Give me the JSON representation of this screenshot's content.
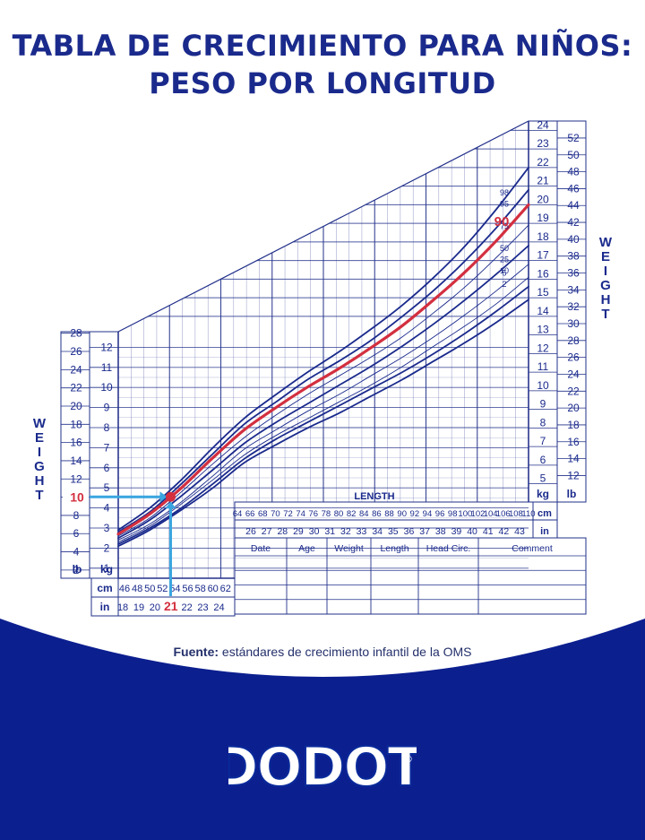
{
  "title": {
    "line1": "TABLA DE CRECIMIENTO PARA NIÑOS:",
    "line2": "PESO POR LONGITUD"
  },
  "colors": {
    "navy": "#1a2a8c",
    "grid": "#22308a",
    "highlight_red": "#d32f3f",
    "arrow_blue": "#3aa6e0",
    "footer_blue": "#0c1f8f"
  },
  "chart_data": {
    "type": "line",
    "title": "",
    "x_axis": {
      "label": "LENGTH",
      "cm_unit": "cm",
      "in_unit": "in",
      "cm_ticks_left": [
        "46",
        "48",
        "50",
        "52",
        "54",
        "56",
        "58",
        "60",
        "62"
      ],
      "in_ticks_left": [
        "18",
        "19",
        "20",
        "21",
        "22",
        "23",
        "24"
      ],
      "cm_ticks_right": [
        "64",
        "66",
        "68",
        "70",
        "72",
        "74",
        "76",
        "78",
        "80",
        "82",
        "84",
        "86",
        "88",
        "90",
        "92",
        "94",
        "96",
        "98",
        "100",
        "102",
        "104",
        "106",
        "108",
        "110"
      ],
      "in_ticks_right": [
        "26",
        "27",
        "28",
        "29",
        "30",
        "31",
        "32",
        "33",
        "34",
        "35",
        "36",
        "37",
        "38",
        "39",
        "40",
        "41",
        "42",
        "43"
      ],
      "range_cm": [
        45,
        110
      ]
    },
    "y_axis": {
      "label_letters": [
        "W",
        "E",
        "I",
        "G",
        "H",
        "T"
      ],
      "kg_unit": "kg",
      "lb_unit": "lb",
      "left_kg_ticks": [
        "1",
        "2",
        "3",
        "4",
        "5",
        "6",
        "7",
        "8",
        "9",
        "10",
        "11",
        "12"
      ],
      "left_lb_ticks": [
        "2",
        "4",
        "6",
        "8",
        "10",
        "12",
        "14",
        "16",
        "18",
        "20",
        "22",
        "24",
        "26",
        "28"
      ],
      "right_kg_ticks": [
        "5",
        "6",
        "7",
        "8",
        "9",
        "10",
        "11",
        "12",
        "13",
        "14",
        "15",
        "16",
        "17",
        "18",
        "19",
        "20",
        "21",
        "22",
        "23",
        "24"
      ],
      "right_lb_ticks": [
        "12",
        "14",
        "16",
        "18",
        "20",
        "22",
        "24",
        "26",
        "28",
        "30",
        "32",
        "34",
        "36",
        "38",
        "40",
        "42",
        "44",
        "46",
        "48",
        "50",
        "52"
      ],
      "range_kg_left": [
        0.5,
        13
      ],
      "range_kg_right": [
        4.5,
        24.5
      ]
    },
    "percentile_labels": [
      "98",
      "95",
      "90",
      "75",
      "50",
      "25",
      "10",
      "5",
      "2"
    ],
    "x": [
      45,
      50,
      55,
      60,
      65,
      70,
      75,
      80,
      85,
      90,
      95,
      100,
      105,
      110
    ],
    "series": [
      {
        "name": "98",
        "values": [
          2.9,
          4.0,
          5.4,
          7.0,
          8.5,
          9.8,
          11.0,
          12.1,
          13.3,
          14.6,
          16.1,
          17.8,
          19.8,
          22.0
        ]
      },
      {
        "name": "95",
        "values": [
          2.8,
          3.8,
          5.2,
          6.7,
          8.2,
          9.4,
          10.6,
          11.6,
          12.7,
          14.0,
          15.4,
          17.0,
          18.8,
          20.8
        ]
      },
      {
        "name": "90",
        "values": [
          2.7,
          3.7,
          5.0,
          6.5,
          7.9,
          9.1,
          10.2,
          11.2,
          12.3,
          13.5,
          14.9,
          16.4,
          18.1,
          20.0
        ]
      },
      {
        "name": "75",
        "values": [
          2.6,
          3.5,
          4.8,
          6.2,
          7.5,
          8.7,
          9.8,
          10.8,
          11.8,
          12.9,
          14.2,
          15.6,
          17.2,
          18.9
        ]
      },
      {
        "name": "50",
        "values": [
          2.5,
          3.4,
          4.6,
          5.9,
          7.2,
          8.3,
          9.3,
          10.3,
          11.3,
          12.4,
          13.6,
          14.9,
          16.3,
          17.8
        ]
      },
      {
        "name": "25",
        "values": [
          2.4,
          3.2,
          4.3,
          5.6,
          6.9,
          7.9,
          8.9,
          9.8,
          10.8,
          11.8,
          12.9,
          14.1,
          15.4,
          16.8
        ]
      },
      {
        "name": "10",
        "values": [
          2.3,
          3.1,
          4.2,
          5.4,
          6.6,
          7.6,
          8.5,
          9.4,
          10.3,
          11.3,
          12.4,
          13.5,
          14.7,
          16.1
        ]
      },
      {
        "name": "5",
        "values": [
          2.2,
          3.0,
          4.0,
          5.2,
          6.4,
          7.4,
          8.3,
          9.2,
          10.1,
          11.0,
          12.0,
          13.1,
          14.3,
          15.6
        ]
      },
      {
        "name": "2",
        "values": [
          2.1,
          2.9,
          3.9,
          5.0,
          6.2,
          7.1,
          8.0,
          8.8,
          9.7,
          10.6,
          11.6,
          12.6,
          13.7,
          14.9
        ]
      }
    ],
    "highlighted_series": "90",
    "example_point": {
      "length_in": "21",
      "weight_lb": "10",
      "weight_kg": 4.55,
      "length_cm": 53.3
    },
    "percentile_callout": "90",
    "record_table": {
      "headers": [
        "Date",
        "Age",
        "Weight",
        "Length",
        "Head Circ.",
        "Comment"
      ],
      "rows": 4
    }
  },
  "source": {
    "label": "Fuente:",
    "text": "estándares de crecimiento infantil de la OMS"
  },
  "logo": {
    "text": "DODOT",
    "registered": "®"
  }
}
